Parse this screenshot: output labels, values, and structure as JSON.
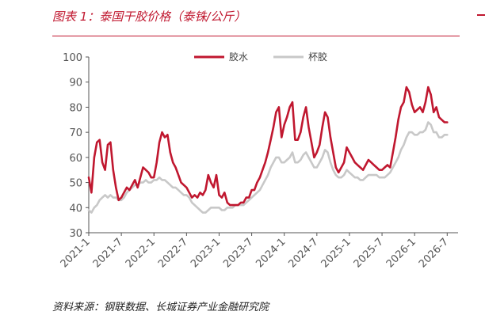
{
  "figure": {
    "title": "图表 1：泰国干胶价格（泰铢/公斤）",
    "source": "资料来源：钢联数据、长城证券产业金融研究院"
  },
  "colors": {
    "accent": "#c0172f",
    "series_red": "#c0172f",
    "series_grey": "#c8c8c8",
    "axis": "#555555"
  },
  "chart_data": {
    "type": "line",
    "xlabel": "",
    "ylabel": "",
    "ylim": [
      30,
      100
    ],
    "yticks": [
      30,
      40,
      50,
      60,
      70,
      80,
      90,
      100
    ],
    "xlim": [
      0,
      68
    ],
    "xticks": [
      {
        "label": "2021-1",
        "pos": 0
      },
      {
        "label": "2021-7",
        "pos": 6
      },
      {
        "label": "2022-1",
        "pos": 12
      },
      {
        "label": "2022-7",
        "pos": 18
      },
      {
        "label": "2023-1",
        "pos": 24
      },
      {
        "label": "2023-7",
        "pos": 30
      },
      {
        "label": "2024-1",
        "pos": 36
      },
      {
        "label": "2024-7",
        "pos": 42
      },
      {
        "label": "2025-1",
        "pos": 48
      },
      {
        "label": "2025-7",
        "pos": 54
      },
      {
        "label": "2026-1",
        "pos": 60
      },
      {
        "label": "2026-7",
        "pos": 66
      }
    ],
    "grid": false,
    "legend_position": "top-center",
    "series": [
      {
        "name": "胶水",
        "color": "#c0172f",
        "points": [
          [
            0,
            52
          ],
          [
            0.5,
            46
          ],
          [
            1,
            60
          ],
          [
            1.5,
            66
          ],
          [
            2,
            67
          ],
          [
            2.5,
            58
          ],
          [
            3,
            55
          ],
          [
            3.5,
            65
          ],
          [
            4,
            66
          ],
          [
            4.5,
            55
          ],
          [
            5,
            48
          ],
          [
            5.5,
            43
          ],
          [
            6,
            44
          ],
          [
            6.5,
            46
          ],
          [
            7,
            48
          ],
          [
            7.5,
            47
          ],
          [
            8,
            49
          ],
          [
            8.5,
            51
          ],
          [
            9,
            48
          ],
          [
            9.5,
            52
          ],
          [
            10,
            56
          ],
          [
            10.5,
            55
          ],
          [
            11,
            54
          ],
          [
            11.5,
            52
          ],
          [
            12,
            52
          ],
          [
            12.5,
            58
          ],
          [
            13,
            66
          ],
          [
            13.5,
            70
          ],
          [
            14,
            68
          ],
          [
            14.5,
            69
          ],
          [
            15,
            62
          ],
          [
            15.5,
            58
          ],
          [
            16,
            56
          ],
          [
            16.5,
            53
          ],
          [
            17,
            50
          ],
          [
            17.5,
            49
          ],
          [
            18,
            48
          ],
          [
            18.5,
            46
          ],
          [
            19,
            44
          ],
          [
            19.5,
            45
          ],
          [
            20,
            44
          ],
          [
            20.5,
            46
          ],
          [
            21,
            45
          ],
          [
            21.5,
            47
          ],
          [
            22,
            53
          ],
          [
            22.5,
            50
          ],
          [
            23,
            48
          ],
          [
            23.5,
            53
          ],
          [
            24,
            45
          ],
          [
            24.5,
            44
          ],
          [
            25,
            46
          ],
          [
            25.5,
            42
          ],
          [
            26,
            41
          ],
          [
            26.5,
            41
          ],
          [
            27,
            41
          ],
          [
            27.5,
            41
          ],
          [
            28,
            42
          ],
          [
            28.5,
            42
          ],
          [
            29,
            44
          ],
          [
            29.5,
            44
          ],
          [
            30,
            47
          ],
          [
            30.5,
            47
          ],
          [
            31,
            50
          ],
          [
            31.5,
            52
          ],
          [
            32,
            55
          ],
          [
            32.5,
            58
          ],
          [
            33,
            62
          ],
          [
            33.5,
            67
          ],
          [
            34,
            72
          ],
          [
            34.5,
            78
          ],
          [
            35,
            80
          ],
          [
            35.5,
            68
          ],
          [
            36,
            73
          ],
          [
            36.5,
            76
          ],
          [
            37,
            80
          ],
          [
            37.5,
            82
          ],
          [
            38,
            67
          ],
          [
            38.5,
            67
          ],
          [
            39,
            70
          ],
          [
            39.5,
            76
          ],
          [
            40,
            80
          ],
          [
            40.5,
            72
          ],
          [
            41,
            66
          ],
          [
            41.5,
            60
          ],
          [
            42,
            62
          ],
          [
            42.5,
            65
          ],
          [
            43,
            72
          ],
          [
            43.5,
            78
          ],
          [
            44,
            76
          ],
          [
            44.5,
            68
          ],
          [
            45,
            62
          ],
          [
            45.5,
            56
          ],
          [
            46,
            54
          ],
          [
            46.5,
            56
          ],
          [
            47,
            58
          ],
          [
            47.5,
            64
          ],
          [
            48,
            62
          ],
          [
            48.5,
            60
          ],
          [
            49,
            58
          ],
          [
            49.5,
            57
          ],
          [
            50,
            56
          ],
          [
            50.5,
            55
          ],
          [
            51,
            57
          ],
          [
            51.5,
            59
          ],
          [
            52,
            58
          ],
          [
            52.5,
            57
          ],
          [
            53,
            56
          ],
          [
            53.5,
            55
          ],
          [
            54,
            55
          ],
          [
            54.5,
            56
          ],
          [
            55,
            57
          ],
          [
            55.5,
            56
          ],
          [
            56,
            62
          ],
          [
            56.5,
            68
          ],
          [
            57,
            75
          ],
          [
            57.5,
            80
          ],
          [
            58,
            82
          ],
          [
            58.5,
            88
          ],
          [
            59,
            86
          ],
          [
            59.5,
            81
          ],
          [
            60,
            78
          ],
          [
            60.5,
            79
          ],
          [
            61,
            80
          ],
          [
            61.5,
            78
          ],
          [
            62,
            82
          ],
          [
            62.5,
            88
          ],
          [
            63,
            85
          ],
          [
            63.5,
            78
          ],
          [
            64,
            80
          ],
          [
            64.5,
            76
          ],
          [
            65,
            75
          ],
          [
            65.5,
            74
          ],
          [
            66,
            74
          ]
        ]
      },
      {
        "name": "杯胶",
        "color": "#c8c8c8",
        "points": [
          [
            0,
            39
          ],
          [
            0.5,
            38
          ],
          [
            1,
            40
          ],
          [
            1.5,
            41
          ],
          [
            2,
            43
          ],
          [
            2.5,
            44
          ],
          [
            3,
            45
          ],
          [
            3.5,
            44
          ],
          [
            4,
            45
          ],
          [
            4.5,
            44
          ],
          [
            5,
            44
          ],
          [
            5.5,
            43
          ],
          [
            6,
            43
          ],
          [
            6.5,
            44
          ],
          [
            7,
            46
          ],
          [
            7.5,
            47
          ],
          [
            8,
            48
          ],
          [
            8.5,
            49
          ],
          [
            9,
            49
          ],
          [
            9.5,
            50
          ],
          [
            10,
            50
          ],
          [
            10.5,
            51
          ],
          [
            11,
            50
          ],
          [
            11.5,
            50
          ],
          [
            12,
            51
          ],
          [
            12.5,
            51
          ],
          [
            13,
            52
          ],
          [
            13.5,
            51
          ],
          [
            14,
            51
          ],
          [
            14.5,
            50
          ],
          [
            15,
            49
          ],
          [
            15.5,
            48
          ],
          [
            16,
            48
          ],
          [
            16.5,
            47
          ],
          [
            17,
            46
          ],
          [
            17.5,
            45
          ],
          [
            18,
            45
          ],
          [
            18.5,
            44
          ],
          [
            19,
            42
          ],
          [
            19.5,
            41
          ],
          [
            20,
            40
          ],
          [
            20.5,
            39
          ],
          [
            21,
            38
          ],
          [
            21.5,
            38
          ],
          [
            22,
            39
          ],
          [
            22.5,
            40
          ],
          [
            23,
            40
          ],
          [
            23.5,
            40
          ],
          [
            24,
            40
          ],
          [
            24.5,
            39
          ],
          [
            25,
            39
          ],
          [
            25.5,
            40
          ],
          [
            26,
            40
          ],
          [
            26.5,
            40
          ],
          [
            27,
            41
          ],
          [
            27.5,
            41
          ],
          [
            28,
            41
          ],
          [
            28.5,
            41
          ],
          [
            29,
            42
          ],
          [
            29.5,
            43
          ],
          [
            30,
            44
          ],
          [
            30.5,
            45
          ],
          [
            31,
            46
          ],
          [
            31.5,
            47
          ],
          [
            32,
            49
          ],
          [
            32.5,
            51
          ],
          [
            33,
            53
          ],
          [
            33.5,
            56
          ],
          [
            34,
            58
          ],
          [
            34.5,
            60
          ],
          [
            35,
            60
          ],
          [
            35.5,
            58
          ],
          [
            36,
            58
          ],
          [
            36.5,
            59
          ],
          [
            37,
            60
          ],
          [
            37.5,
            62
          ],
          [
            38,
            58
          ],
          [
            38.5,
            58
          ],
          [
            39,
            59
          ],
          [
            39.5,
            61
          ],
          [
            40,
            62
          ],
          [
            40.5,
            60
          ],
          [
            41,
            58
          ],
          [
            41.5,
            56
          ],
          [
            42,
            56
          ],
          [
            42.5,
            58
          ],
          [
            43,
            60
          ],
          [
            43.5,
            63
          ],
          [
            44,
            62
          ],
          [
            44.5,
            58
          ],
          [
            45,
            55
          ],
          [
            45.5,
            53
          ],
          [
            46,
            52
          ],
          [
            46.5,
            52
          ],
          [
            47,
            53
          ],
          [
            47.5,
            55
          ],
          [
            48,
            54
          ],
          [
            48.5,
            53
          ],
          [
            49,
            52
          ],
          [
            49.5,
            52
          ],
          [
            50,
            51
          ],
          [
            50.5,
            51
          ],
          [
            51,
            52
          ],
          [
            51.5,
            53
          ],
          [
            52,
            53
          ],
          [
            52.5,
            53
          ],
          [
            53,
            53
          ],
          [
            53.5,
            52
          ],
          [
            54,
            52
          ],
          [
            54.5,
            52
          ],
          [
            55,
            53
          ],
          [
            55.5,
            54
          ],
          [
            56,
            56
          ],
          [
            56.5,
            58
          ],
          [
            57,
            60
          ],
          [
            57.5,
            63
          ],
          [
            58,
            65
          ],
          [
            58.5,
            68
          ],
          [
            59,
            70
          ],
          [
            59.5,
            70
          ],
          [
            60,
            69
          ],
          [
            60.5,
            69
          ],
          [
            61,
            70
          ],
          [
            61.5,
            70
          ],
          [
            62,
            71
          ],
          [
            62.5,
            74
          ],
          [
            63,
            73
          ],
          [
            63.5,
            70
          ],
          [
            64,
            70
          ],
          [
            64.5,
            68
          ],
          [
            65,
            68
          ],
          [
            65.5,
            69
          ],
          [
            66,
            69
          ]
        ]
      }
    ]
  }
}
